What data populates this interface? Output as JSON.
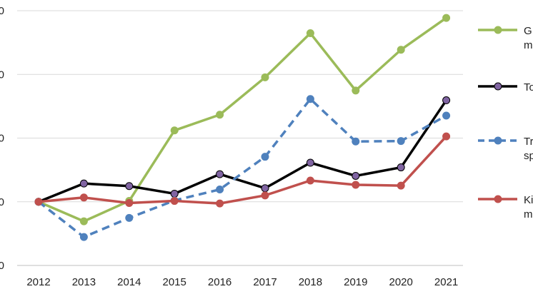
{
  "chart_data": {
    "type": "line",
    "title": "",
    "xlabel": "",
    "ylabel": "",
    "categories": [
      "2012",
      "2013",
      "2014",
      "2015",
      "2016",
      "2017",
      "2018",
      "2019",
      "2020",
      "2021"
    ],
    "ylim": [
      80,
      140
    ],
    "y_tick_labels": [
      "0",
      "0",
      "0",
      "0",
      "0"
    ],
    "y_tick_values": [
      140,
      125,
      110,
      95,
      80
    ],
    "grid": true,
    "legend_position": "right",
    "series": [
      {
        "name": "G… m…",
        "legend_lines": [
          "G",
          "m"
        ],
        "color": "#9bbb59",
        "marker_color": "#9bbb59",
        "dash": false,
        "values": [
          95,
          90.4,
          95.2,
          111.8,
          115.5,
          124.3,
          134.7,
          121.2,
          130.8,
          138.3
        ]
      },
      {
        "name": "To…",
        "legend_lines": [
          "To"
        ],
        "color": "#000000",
        "marker_color": "#8064a2",
        "dash": false,
        "values": [
          95,
          99.3,
          98.7,
          96.9,
          101.5,
          98.2,
          104.2,
          101.1,
          103.1,
          118.9
        ]
      },
      {
        "name": "Tr… sp…",
        "legend_lines": [
          "Tr",
          "sp"
        ],
        "color": "#4f81bd",
        "marker_color": "#4f81bd",
        "dash": true,
        "values": [
          95,
          86.7,
          91.2,
          95.3,
          97.9,
          105.6,
          119.2,
          109.2,
          109.3,
          115.3
        ]
      },
      {
        "name": "Ki… m…",
        "legend_lines": [
          "Ki",
          "m"
        ],
        "color": "#c0504d",
        "marker_color": "#c0504d",
        "dash": false,
        "values": [
          95,
          96,
          94.7,
          95.2,
          94.6,
          96.5,
          100,
          99,
          98.8,
          110.4
        ]
      }
    ]
  }
}
